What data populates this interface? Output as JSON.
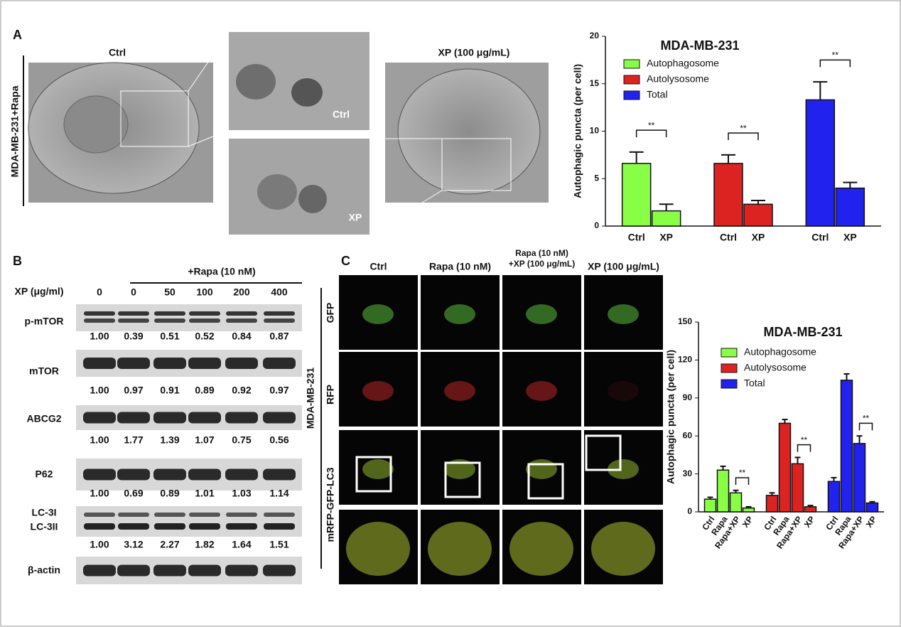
{
  "panel_labels": [
    "A",
    "B",
    "C"
  ],
  "panel_a": {
    "side_label": "MDA-MB-231+Rapa",
    "image_labels": [
      "Ctrl",
      "XP (100 μg/mL)"
    ],
    "inset_labels": [
      "Ctrl",
      "XP"
    ]
  },
  "panel_b": {
    "treatment_label": "+Rapa (10 nM)",
    "dose_label": "XP (μg/ml)",
    "doses": [
      0,
      0,
      50,
      100,
      200,
      400
    ],
    "blots": [
      {
        "label": [
          "p-mTOR"
        ],
        "ratios": [
          "1.00",
          "0.39",
          "0.51",
          "0.52",
          "0.84",
          "0.87"
        ]
      },
      {
        "label": [
          "mTOR"
        ],
        "ratios": [
          "1.00",
          "0.97",
          "0.91",
          "0.89",
          "0.92",
          "0.97"
        ]
      },
      {
        "label": [
          "ABCG2"
        ],
        "ratios": [
          "1.00",
          "1.77",
          "1.39",
          "1.07",
          "0.75",
          "0.56"
        ]
      },
      {
        "label": [
          "P62"
        ],
        "ratios": [
          "1.00",
          "0.69",
          "0.89",
          "1.01",
          "1.03",
          "1.14"
        ]
      },
      {
        "label": [
          "LC-3I",
          "LC-3II"
        ],
        "ratios": [
          "1.00",
          "3.12",
          "2.27",
          "1.82",
          "1.64",
          "1.51"
        ]
      },
      {
        "label": [
          "β-actin"
        ]
      }
    ]
  },
  "panel_c": {
    "columns": [
      [
        "Ctrl"
      ],
      [
        "Rapa (10 nM)"
      ],
      [
        "Rapa (10 nM)",
        "+XP (100 μg/mL)"
      ],
      [
        "XP (100 μg/mL)"
      ]
    ],
    "rows": [
      "GFP",
      "RFP",
      "mRFP-GFP-LC3"
    ],
    "cell_line": "MDA-MB-231"
  },
  "chart_data": [
    {
      "type": "bar",
      "title": "MDA-MB-231",
      "y_label": "Autophagic puncta (per cell)",
      "ylim": [
        0,
        20
      ],
      "yticks": [
        0,
        5,
        10,
        15,
        20
      ],
      "series": [
        {
          "name": "Autophagosome",
          "color": "#88ff44",
          "categories": [
            "Ctrl",
            "XP"
          ],
          "values": [
            6.6,
            1.6
          ],
          "errors": [
            1.2,
            0.7
          ],
          "significance": "**"
        },
        {
          "name": "Autolysosome",
          "color": "#dd2222",
          "categories": [
            "Ctrl",
            "XP"
          ],
          "values": [
            6.6,
            2.3
          ],
          "errors": [
            0.9,
            0.4
          ],
          "significance": "**"
        },
        {
          "name": "Total",
          "color": "#2222ee",
          "categories": [
            "Ctrl",
            "XP"
          ],
          "values": [
            13.3,
            4.0
          ],
          "errors": [
            1.9,
            0.6
          ],
          "significance": "**"
        }
      ]
    },
    {
      "type": "bar",
      "title": "MDA-MB-231",
      "y_label": "Autophagic puncta (per cell)",
      "ylim": [
        0,
        150
      ],
      "yticks": [
        0,
        30,
        60,
        90,
        120,
        150
      ],
      "series": [
        {
          "name": "Autophagosome",
          "color": "#88ff44",
          "categories": [
            "Ctrl",
            "Rapa",
            "Rapa+XP",
            "XP"
          ],
          "values": [
            10,
            33,
            15,
            3
          ],
          "errors": [
            1.5,
            3,
            2,
            1
          ],
          "significance": "**"
        },
        {
          "name": "Autolysosome",
          "color": "#dd2222",
          "categories": [
            "Ctrl",
            "Rapa",
            "Rapa+XP",
            "XP"
          ],
          "values": [
            13,
            70,
            38,
            4
          ],
          "errors": [
            2,
            3,
            5,
            1
          ],
          "significance": "**"
        },
        {
          "name": "Total",
          "color": "#2222ee",
          "categories": [
            "Ctrl",
            "Rapa",
            "Rapa+XP",
            "XP"
          ],
          "values": [
            24,
            104,
            54,
            7
          ],
          "errors": [
            3,
            5,
            6,
            1
          ],
          "significance": "**"
        }
      ]
    }
  ]
}
